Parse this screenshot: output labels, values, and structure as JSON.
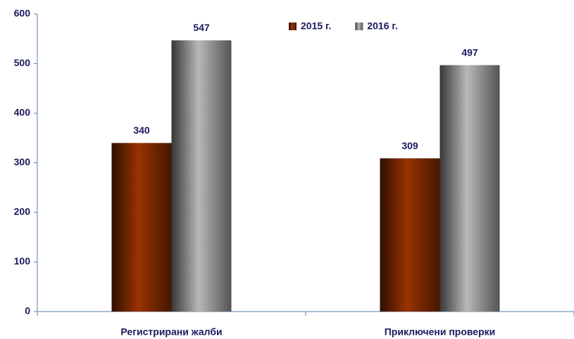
{
  "chart_data": {
    "type": "bar",
    "categories": [
      "Регистрирани жалби",
      "Приключени проверки"
    ],
    "series": [
      {
        "name": "2015 г.",
        "color": "#993300",
        "values": [
          340,
          309
        ]
      },
      {
        "name": "2016 г.",
        "color": "#b8b8b8",
        "values": [
          547,
          497
        ]
      }
    ],
    "ylim": [
      0,
      600
    ],
    "yticks": [
      0,
      100,
      200,
      300,
      400,
      500,
      600
    ],
    "legend": "top"
  }
}
